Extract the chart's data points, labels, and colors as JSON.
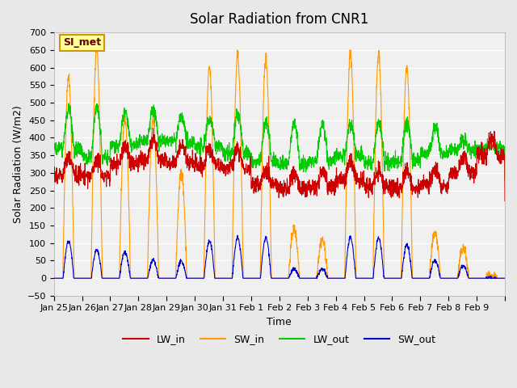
{
  "title": "Solar Radiation from CNR1",
  "xlabel": "Time",
  "ylabel": "Solar Radiation (W/m2)",
  "ylim": [
    -50,
    700
  ],
  "xtick_labels": [
    "Jan 25",
    "Jan 26",
    "Jan 27",
    "Jan 28",
    "Jan 29",
    "Jan 30",
    "Jan 31",
    "Feb 1",
    "Feb 2",
    "Feb 3",
    "Feb 4",
    "Feb 5",
    "Feb 6",
    "Feb 7",
    "Feb 8",
    "Feb 9"
  ],
  "colors": {
    "LW_in": "#cc0000",
    "SW_in": "#ff9900",
    "LW_out": "#00cc00",
    "SW_out": "#0000cc"
  },
  "bg_color": "#e8e8e8",
  "plot_bg": "#f0f0f0",
  "annotation_text": "SI_met",
  "annotation_bg": "#ffff99",
  "annotation_border": "#cc9900",
  "sw_in_peaks": [
    575,
    655,
    455,
    455,
    305,
    600,
    635,
    630,
    140,
    110,
    640,
    640,
    600,
    130,
    85,
    0
  ],
  "sw_out_peaks": [
    105,
    80,
    75,
    50,
    48,
    105,
    115,
    115,
    25,
    25,
    115,
    115,
    95,
    50,
    35,
    0
  ],
  "lw_in_base_vals": [
    295.0,
    290.0,
    325.0,
    340.0,
    330.0,
    320.0,
    315.0,
    265.0,
    255.0,
    260.0,
    280.0,
    260.0,
    255.0,
    265.0,
    300.0,
    350.0
  ],
  "lw_out_base_vals": [
    370.0,
    345.0,
    380.0,
    390.0,
    390.0,
    375.0,
    355.0,
    330.0,
    325.0,
    335.0,
    350.0,
    330.0,
    335.0,
    355.0,
    365.0,
    370.0
  ],
  "lw_out_peak_extra": [
    110.0,
    140.0,
    90.0,
    90.0,
    70.0,
    80.0,
    110.0,
    115.0,
    120.0,
    100.0,
    90.0,
    115.0,
    110.0,
    70.0,
    30.0,
    10.0
  ]
}
